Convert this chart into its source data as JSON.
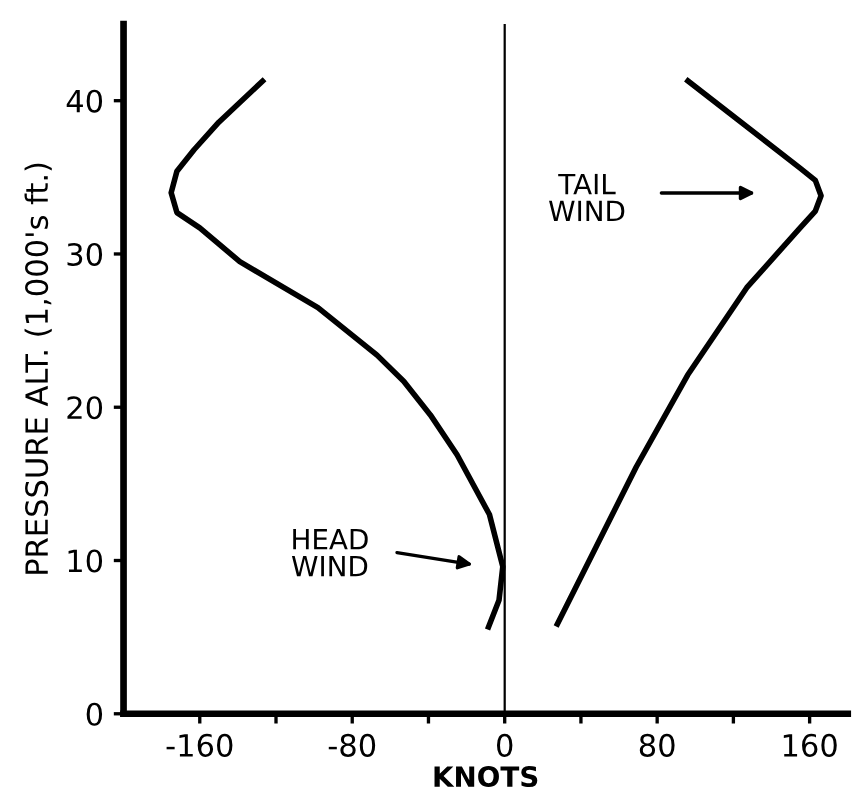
{
  "chart_data": {
    "type": "line",
    "xlabel": "KNOTS",
    "ylabel": "PRESSURE ALT. (1,000's ft.)",
    "xlim": [
      -200,
      180
    ],
    "ylim": [
      0,
      45
    ],
    "xticks": [
      -160,
      {
        "value": -120,
        "label": null
      },
      -80,
      {
        "value": -40,
        "label": null
      },
      0,
      {
        "value": 40,
        "label": null
      },
      80,
      {
        "value": 120,
        "label": null
      },
      160
    ],
    "yticks": [
      0,
      10,
      20,
      30,
      40
    ],
    "grid": false,
    "legend": false,
    "marker": "none",
    "line_style": "solid",
    "ref_lines": [
      {
        "axis": "x",
        "value": 0,
        "color": "#000000"
      }
    ],
    "annotations": [
      "HEAD\nWIND",
      "TAIL\nWIND"
    ],
    "series": [
      {
        "color": "#000000",
        "x": [
          -126,
          -150,
          -163,
          -172,
          -175,
          -172,
          -160,
          -139,
          -98,
          -67,
          -53,
          -39,
          -25,
          -8,
          -1,
          -3,
          -9
        ],
        "values": [
          41.4,
          38.6,
          36.8,
          35.4,
          34,
          32.7,
          31.7,
          29.5,
          26.5,
          23.4,
          21.7,
          19.5,
          16.9,
          13,
          9.6,
          7.4,
          5.5
        ]
      },
      {
        "color": "#000000",
        "x": [
          95,
          155,
          163,
          166,
          163,
          155,
          127,
          96,
          69,
          48,
          27
        ],
        "values": [
          41.4,
          35.6,
          34.8,
          33.8,
          32.8,
          31.7,
          27.8,
          22.1,
          16.1,
          10.9,
          5.7
        ]
      }
    ]
  }
}
